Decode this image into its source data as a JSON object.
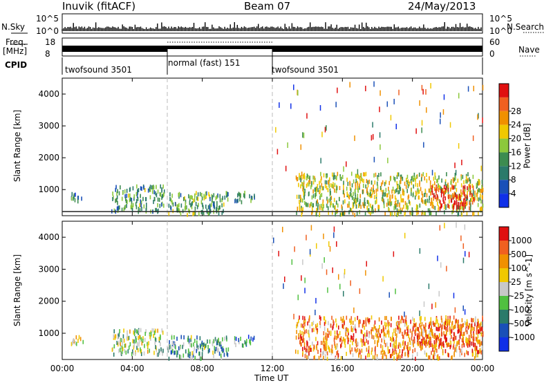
{
  "header": {
    "station": "Inuvik (fitACF)",
    "beam": "Beam 07",
    "date": "24/May/2013"
  },
  "strips": {
    "nsky_label": "N.Sky",
    "nsky_ticks": [
      "10^5",
      "10^0"
    ],
    "nsearch_label": "N.Search",
    "nsearch_ticks": [
      "10^5",
      "10^0"
    ],
    "freq_label": "Freq.",
    "freq_unit": "[MHz]",
    "freq_ticks": [
      "18",
      "8"
    ],
    "nave_label": "Nave",
    "nave_ticks": [
      "60",
      "0"
    ],
    "cpid_label": "CPID",
    "cpid_segments": [
      {
        "label": "twofsound 3501",
        "start_hour": 0,
        "end_hour": 6
      },
      {
        "label": "normal (fast) 151",
        "start_hour": 6,
        "end_hour": 12
      },
      {
        "label": "twofsound 3501",
        "start_hour": 12,
        "end_hour": 24
      }
    ]
  },
  "colors": {
    "power_scale": [
      "#1030e8",
      "#1a50b8",
      "#2a7a6a",
      "#3c8c50",
      "#8cc83c",
      "#f0c800",
      "#f09000",
      "#f06020",
      "#e01010"
    ],
    "velocity_scale": [
      "#1030e8",
      "#1a50b8",
      "#2a7a6a",
      "#50c040",
      "#c8c8c8",
      "#f0c800",
      "#f09000",
      "#f06020",
      "#e01010"
    ]
  },
  "chart_data": [
    {
      "type": "heatmap",
      "title": "Power",
      "ylabel": "Slant Range [km]",
      "xlabel": "Time UT",
      "x_ticks": [
        "00:00",
        "04:00",
        "08:00",
        "12:00",
        "16:00",
        "20:00",
        "00:00"
      ],
      "y_ticks": [
        1000,
        2000,
        3000,
        4000
      ],
      "xlim_hours": [
        0,
        24
      ],
      "ylim_km": [
        180,
        4500
      ],
      "colorbar_label": "Power [dB]",
      "colorbar_ticks": [
        4,
        8,
        12,
        16,
        20,
        24,
        28
      ],
      "echo_regions": [
        {
          "t0": 0.5,
          "t1": 1.2,
          "r0": 600,
          "r1": 900,
          "level": 0.3
        },
        {
          "t0": 2.8,
          "t1": 5.8,
          "r0": 300,
          "r1": 1100,
          "level": 0.35
        },
        {
          "t0": 6.0,
          "t1": 9.5,
          "r0": 200,
          "r1": 900,
          "level": 0.4
        },
        {
          "t0": 9.8,
          "t1": 11.0,
          "r0": 600,
          "r1": 900,
          "level": 0.3
        },
        {
          "t0": 13.3,
          "t1": 24.0,
          "r0": 200,
          "r1": 1500,
          "level": 0.55
        },
        {
          "t0": 21.0,
          "t1": 23.5,
          "r0": 400,
          "r1": 1100,
          "level": 0.95
        }
      ]
    },
    {
      "type": "heatmap",
      "title": "Velocity",
      "ylabel": "Slant Range [km]",
      "xlabel": "Time UT",
      "x_ticks": [
        "00:00",
        "04:00",
        "08:00",
        "12:00",
        "16:00",
        "20:00",
        "00:00"
      ],
      "y_ticks": [
        1000,
        2000,
        3000,
        4000
      ],
      "xlim_hours": [
        0,
        24
      ],
      "ylim_km": [
        180,
        4500
      ],
      "colorbar_label": "Velocity [m s^-1]",
      "colorbar_ticks": [
        "1000",
        "500",
        "100",
        "25",
        "-25",
        "-100",
        "-500",
        "-1000"
      ],
      "echo_regions": [
        {
          "t0": 0.5,
          "t1": 1.2,
          "r0": 600,
          "r1": 900,
          "level": 0.55
        },
        {
          "t0": 2.8,
          "t1": 5.8,
          "r0": 300,
          "r1": 1100,
          "level": 0.5
        },
        {
          "t0": 6.0,
          "t1": 9.5,
          "r0": 200,
          "r1": 900,
          "level": 0.35
        },
        {
          "t0": 9.8,
          "t1": 11.0,
          "r0": 600,
          "r1": 900,
          "level": 0.3
        },
        {
          "t0": 13.3,
          "t1": 24.0,
          "r0": 200,
          "r1": 1500,
          "level": 0.75
        },
        {
          "t0": 20.0,
          "t1": 24.0,
          "r0": 600,
          "r1": 1300,
          "level": 0.85
        }
      ]
    }
  ]
}
